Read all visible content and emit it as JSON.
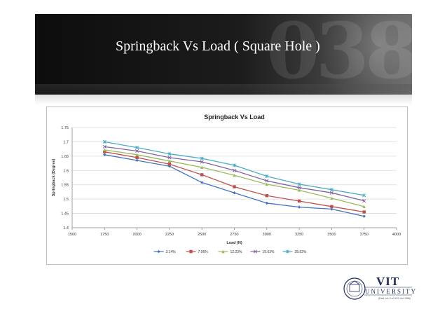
{
  "slide_title": "Springback Vs Load ( Square Hole )",
  "decor_digits": "038",
  "logo": {
    "name": "VIT",
    "subtitle": "UNIVERSITY",
    "motto": "(Estd. u/s 3 of UGC Act 1956)"
  },
  "chart_data": {
    "type": "line",
    "title": "Springback Vs Load",
    "xlabel": "Load (N)",
    "ylabel": "Springback (Degree)",
    "xlim": [
      1500,
      4000
    ],
    "ylim": [
      1.4,
      1.75
    ],
    "xticks": [
      1500,
      1750,
      2000,
      2250,
      2500,
      2750,
      3000,
      3250,
      3500,
      3750,
      4000
    ],
    "yticks": [
      1.4,
      1.45,
      1.5,
      1.55,
      1.6,
      1.65,
      1.7,
      1.75
    ],
    "x": [
      1750,
      2000,
      2250,
      2500,
      2750,
      3000,
      3250,
      3500,
      3750
    ],
    "grid": true,
    "legend_position": "bottom",
    "series": [
      {
        "name": "3.14%",
        "color": "#4472c4",
        "marker": "diamond",
        "values": [
          1.655,
          1.635,
          1.615,
          1.558,
          1.522,
          1.486,
          1.472,
          1.465,
          1.44
        ]
      },
      {
        "name": "7.06%",
        "color": "#c0504d",
        "marker": "square",
        "values": [
          1.665,
          1.645,
          1.622,
          1.585,
          1.543,
          1.512,
          1.493,
          1.474,
          1.455
        ]
      },
      {
        "name": "12.23%",
        "color": "#9bbb59",
        "marker": "triangle",
        "values": [
          1.672,
          1.655,
          1.633,
          1.611,
          1.583,
          1.552,
          1.531,
          1.503,
          1.474
        ]
      },
      {
        "name": "19.63%",
        "color": "#8064a2",
        "marker": "x",
        "values": [
          1.683,
          1.668,
          1.645,
          1.63,
          1.6,
          1.564,
          1.54,
          1.522,
          1.494
        ]
      },
      {
        "name": "28.52%",
        "color": "#4bacc6",
        "marker": "star",
        "values": [
          1.7,
          1.68,
          1.658,
          1.642,
          1.618,
          1.58,
          1.552,
          1.533,
          1.513
        ]
      }
    ]
  }
}
